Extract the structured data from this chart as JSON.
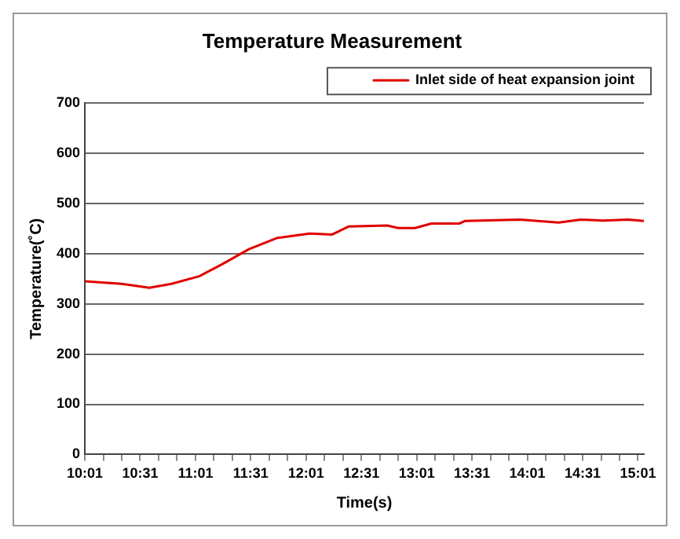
{
  "chart_data": {
    "type": "line",
    "title": "Temperature Measurement",
    "xlabel": "Time(s)",
    "ylabel": "Temperature(˚C)",
    "x": [
      10.0167,
      10.35,
      10.6,
      10.8,
      11.05,
      11.25,
      11.5,
      11.75,
      12.05,
      12.25,
      12.4,
      12.75,
      12.85,
      13.0,
      13.15,
      13.4,
      13.45,
      13.95,
      14.3,
      14.5,
      14.7,
      14.93,
      15.07
    ],
    "series": [
      {
        "name": "Inlet side of heat expansion joint",
        "color": "#e00000",
        "values": [
          345,
          340,
          332,
          340,
          355,
          378,
          409,
          431,
          440,
          438,
          454,
          456,
          451,
          451,
          460,
          460,
          465,
          468,
          462,
          468,
          466,
          468,
          465
        ]
      }
    ],
    "xlim": [
      10.0167,
      15.07
    ],
    "xticks": [
      {
        "value": 10.0167,
        "label": "10:01"
      },
      {
        "value": 10.1833,
        "label": null
      },
      {
        "value": 10.35,
        "label": null
      },
      {
        "value": 10.5167,
        "label": "10:31"
      },
      {
        "value": 10.6833,
        "label": null
      },
      {
        "value": 10.85,
        "label": null
      },
      {
        "value": 11.0167,
        "label": "11:01"
      },
      {
        "value": 11.1833,
        "label": null
      },
      {
        "value": 11.35,
        "label": null
      },
      {
        "value": 11.5167,
        "label": "11:31"
      },
      {
        "value": 11.6833,
        "label": null
      },
      {
        "value": 11.85,
        "label": null
      },
      {
        "value": 12.0167,
        "label": "12:01"
      },
      {
        "value": 12.1833,
        "label": null
      },
      {
        "value": 12.35,
        "label": null
      },
      {
        "value": 12.5167,
        "label": "12:31"
      },
      {
        "value": 12.6833,
        "label": null
      },
      {
        "value": 12.85,
        "label": null
      },
      {
        "value": 13.0167,
        "label": "13:01"
      },
      {
        "value": 13.1833,
        "label": null
      },
      {
        "value": 13.35,
        "label": null
      },
      {
        "value": 13.5167,
        "label": "13:31"
      },
      {
        "value": 13.6833,
        "label": null
      },
      {
        "value": 13.85,
        "label": null
      },
      {
        "value": 14.0167,
        "label": "14:01"
      },
      {
        "value": 14.1833,
        "label": null
      },
      {
        "value": 14.35,
        "label": null
      },
      {
        "value": 14.5167,
        "label": "14:31"
      },
      {
        "value": 14.6833,
        "label": null
      },
      {
        "value": 14.85,
        "label": null
      },
      {
        "value": 15.0167,
        "label": "15:01"
      }
    ],
    "ylim": [
      0,
      700
    ],
    "yticks": [
      0,
      100,
      200,
      300,
      400,
      500,
      600,
      700
    ],
    "grid": "y",
    "legend": "top right",
    "marker": "none",
    "line_style": "solid"
  }
}
